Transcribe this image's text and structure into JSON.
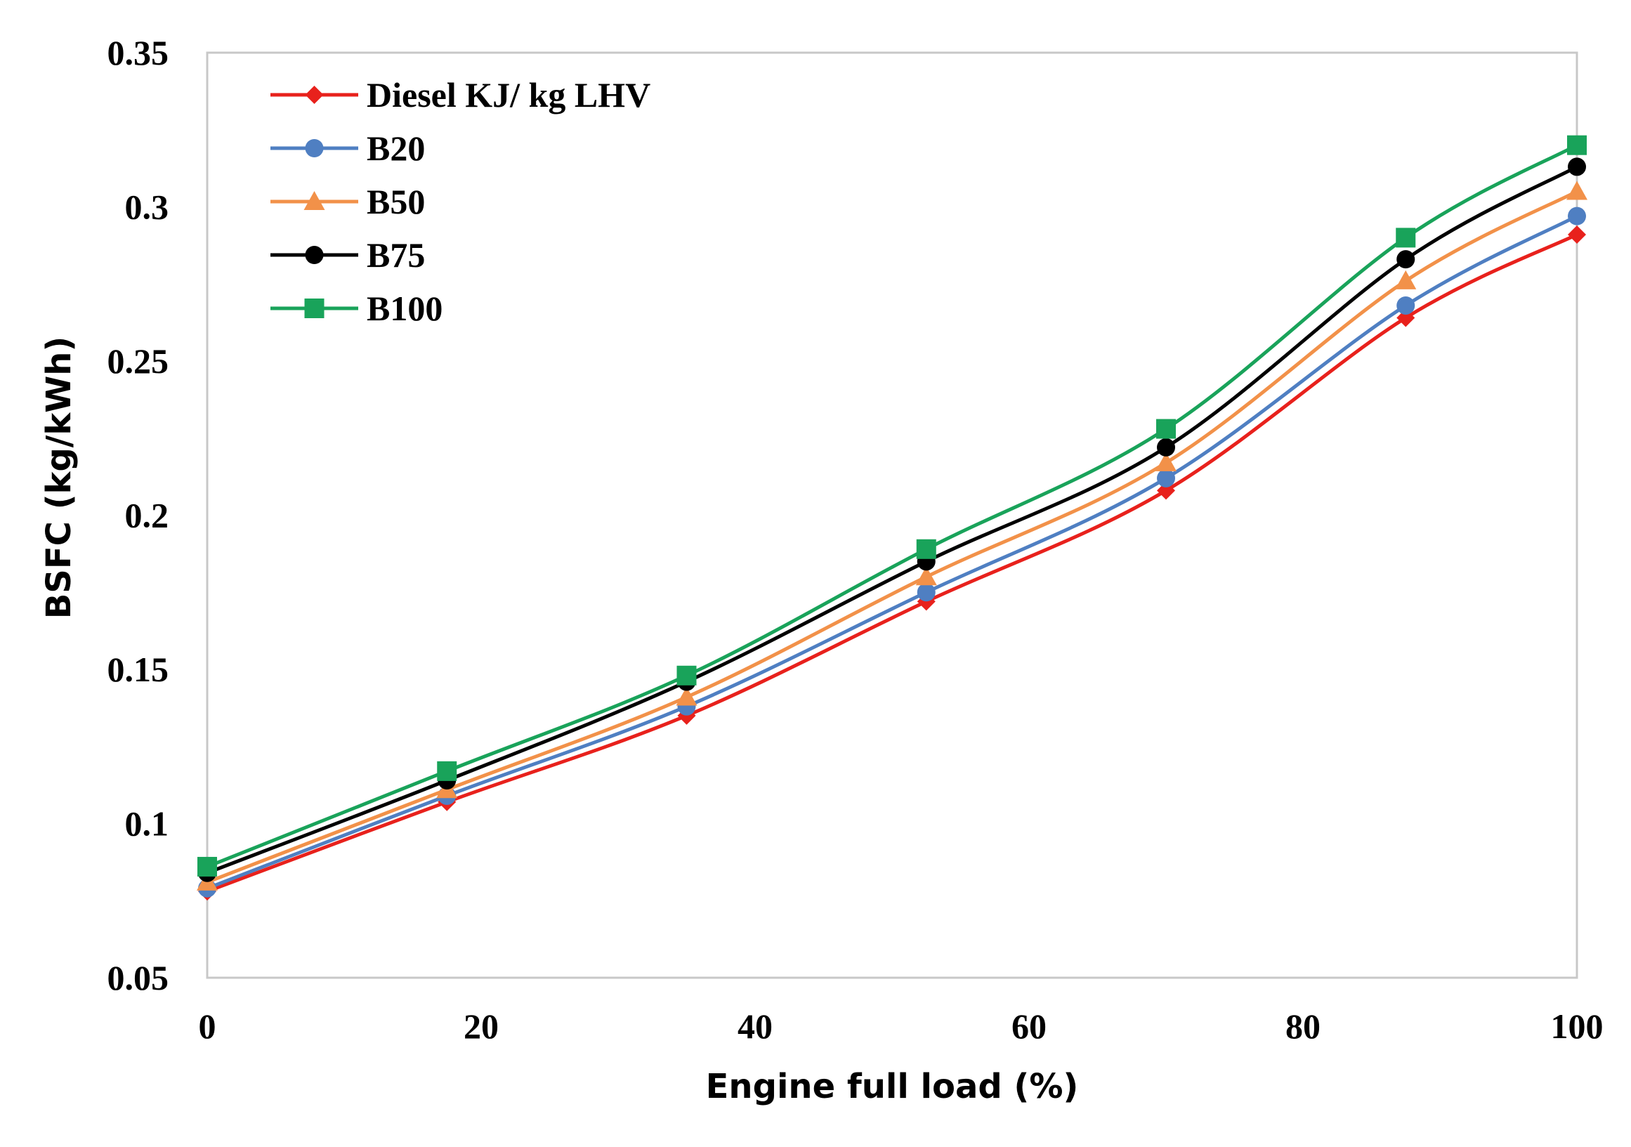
{
  "chart_data": {
    "type": "line",
    "title": "",
    "xlabel": "Engine full load (%)",
    "ylabel": "BSFC (kg/kWh)",
    "xlim": [
      0,
      100
    ],
    "ylim": [
      0.05,
      0.35
    ],
    "xticks": [
      0,
      20,
      40,
      60,
      80,
      100
    ],
    "xtick_labels": [
      "0",
      "20",
      "40",
      "60",
      "80",
      "100"
    ],
    "yticks": [
      0.05,
      0.1,
      0.15,
      0.2,
      0.25,
      0.3,
      0.35
    ],
    "ytick_labels": [
      "0.05",
      "0.1",
      "0.15",
      "0.2",
      "0.25",
      "0.3",
      "0.35"
    ],
    "grid": false,
    "legend_position": "top-left",
    "x": [
      0,
      17.5,
      35,
      52.5,
      70,
      87.5,
      100
    ],
    "series": [
      {
        "name": "Diesel KJ/ kg LHV",
        "color": "#e8211c",
        "marker": "diamond",
        "values": [
          0.078,
          0.107,
          0.135,
          0.172,
          0.208,
          0.264,
          0.291
        ]
      },
      {
        "name": "B20",
        "color": "#4f7fc2",
        "marker": "circle",
        "values": [
          0.079,
          0.109,
          0.138,
          0.175,
          0.212,
          0.268,
          0.297
        ]
      },
      {
        "name": "B50",
        "color": "#f29149",
        "marker": "triangle",
        "values": [
          0.081,
          0.111,
          0.141,
          0.18,
          0.217,
          0.276,
          0.305
        ]
      },
      {
        "name": "B75",
        "color": "#000000",
        "marker": "circle",
        "values": [
          0.084,
          0.114,
          0.146,
          0.185,
          0.222,
          0.283,
          0.313
        ]
      },
      {
        "name": "B100",
        "color": "#19a35a",
        "marker": "square",
        "values": [
          0.086,
          0.117,
          0.148,
          0.189,
          0.228,
          0.29,
          0.32
        ]
      }
    ]
  }
}
